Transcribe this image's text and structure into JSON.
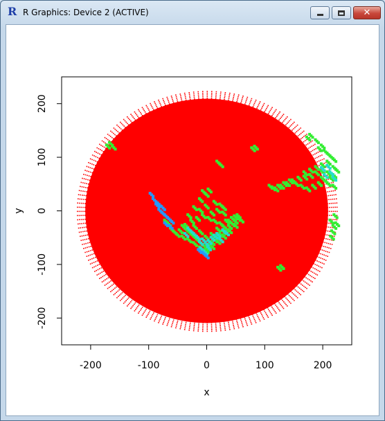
{
  "window": {
    "title": "R Graphics: Device 2 (ACTIVE)",
    "icon": "r-logo-icon",
    "controls": [
      "minimize-icon",
      "maximize-icon",
      "close-icon"
    ]
  },
  "colors": {
    "disc": "#ff0000",
    "green": "#33ee33",
    "cyan": "#22ddcc",
    "blue": "#2299ff"
  },
  "chart_data": {
    "type": "scatter",
    "title": "",
    "xlabel": "x",
    "ylabel": "y",
    "xlim": [
      -250,
      250
    ],
    "ylim": [
      -250,
      250
    ],
    "xticks": [
      -200,
      -100,
      0,
      100,
      200
    ],
    "yticks": [
      -200,
      -100,
      0,
      100,
      200
    ],
    "grid": false,
    "legend": "none",
    "disc_radius": 225,
    "series": [
      {
        "color": "#ff0000",
        "description_points": "radial polar grid of points filling disc radius 225"
      }
    ],
    "clusters": [
      {
        "color": "#33ee33",
        "points": [
          [
            110,
            45
          ],
          [
            120,
            40
          ],
          [
            130,
            45
          ],
          [
            140,
            50
          ],
          [
            150,
            55
          ],
          [
            160,
            60
          ],
          [
            170,
            62
          ],
          [
            180,
            65
          ],
          [
            190,
            70
          ],
          [
            200,
            72
          ],
          [
            210,
            70
          ],
          [
            220,
            65
          ],
          [
            215,
            60
          ],
          [
            205,
            55
          ],
          [
            195,
            50
          ],
          [
            185,
            45
          ],
          [
            175,
            40
          ],
          [
            165,
            45
          ],
          [
            155,
            50
          ],
          [
            145,
            55
          ],
          [
            135,
            50
          ],
          [
            125,
            45
          ],
          [
            115,
            42
          ],
          [
            170,
            70
          ],
          [
            180,
            75
          ],
          [
            190,
            80
          ],
          [
            200,
            85
          ],
          [
            210,
            90
          ],
          [
            220,
            80
          ],
          [
            215,
            100
          ],
          [
            205,
            110
          ],
          [
            200,
            120
          ],
          [
            190,
            130
          ],
          [
            180,
            140
          ],
          [
            175,
            135
          ],
          [
            195,
            115
          ],
          [
            210,
            105
          ],
          [
            220,
            95
          ],
          [
            225,
            75
          ],
          [
            200,
            60
          ],
          [
            210,
            50
          ],
          [
            220,
            45
          ]
        ]
      },
      {
        "color": "#22ddcc",
        "points": [
          [
            200,
            78
          ],
          [
            210,
            82
          ],
          [
            220,
            60
          ],
          [
            215,
            70
          ],
          [
            205,
            65
          ]
        ]
      },
      {
        "color": "#33ee33",
        "points": [
          [
            215,
            -20
          ],
          [
            220,
            -30
          ],
          [
            225,
            -25
          ],
          [
            218,
            -40
          ],
          [
            222,
            -10
          ],
          [
            216,
            -50
          ]
        ]
      },
      {
        "color": "#33ee33",
        "points": [
          [
            -170,
            120
          ],
          [
            -165,
            125
          ],
          [
            -160,
            118
          ],
          [
            80,
            115
          ],
          [
            85,
            118
          ],
          [
            130,
            -105
          ],
          [
            125,
            -108
          ],
          [
            20,
            90
          ],
          [
            25,
            85
          ],
          [
            -5,
            35
          ],
          [
            0,
            30
          ],
          [
            5,
            38
          ],
          [
            -10,
            20
          ],
          [
            15,
            15
          ],
          [
            25,
            10
          ],
          [
            30,
            5
          ]
        ]
      },
      {
        "color": "#33ee33",
        "points": [
          [
            -40,
            -30
          ],
          [
            -35,
            -35
          ],
          [
            -30,
            -40
          ],
          [
            -25,
            -45
          ],
          [
            -20,
            -50
          ],
          [
            -15,
            -55
          ],
          [
            -10,
            -60
          ],
          [
            -5,
            -65
          ],
          [
            0,
            -70
          ],
          [
            5,
            -65
          ],
          [
            10,
            -60
          ],
          [
            15,
            -55
          ],
          [
            20,
            -50
          ],
          [
            25,
            -45
          ],
          [
            30,
            -40
          ],
          [
            35,
            -35
          ],
          [
            40,
            -30
          ],
          [
            45,
            -25
          ],
          [
            50,
            -20
          ],
          [
            55,
            -15
          ],
          [
            60,
            -18
          ],
          [
            50,
            -28
          ],
          [
            40,
            -38
          ],
          [
            30,
            -48
          ],
          [
            20,
            -58
          ],
          [
            10,
            -68
          ],
          [
            0,
            -75
          ],
          [
            -10,
            -70
          ],
          [
            -20,
            -62
          ],
          [
            -30,
            -55
          ],
          [
            -40,
            -50
          ],
          [
            -50,
            -45
          ],
          [
            -45,
            -38
          ],
          [
            -35,
            -28
          ],
          [
            -25,
            -20
          ],
          [
            -15,
            -15
          ],
          [
            -5,
            -10
          ],
          [
            5,
            -15
          ],
          [
            15,
            -20
          ],
          [
            25,
            -25
          ],
          [
            35,
            -20
          ],
          [
            45,
            -15
          ],
          [
            55,
            -10
          ],
          [
            -55,
            -40
          ],
          [
            -60,
            -35
          ],
          [
            -20,
            -30
          ],
          [
            -10,
            -40
          ],
          [
            0,
            -50
          ],
          [
            10,
            -45
          ],
          [
            20,
            -35
          ],
          [
            30,
            -30
          ],
          [
            40,
            -20
          ],
          [
            50,
            -12
          ],
          [
            -65,
            -25
          ],
          [
            -70,
            -20
          ],
          [
            -30,
            -10
          ],
          [
            -20,
            5
          ],
          [
            -10,
            0
          ],
          [
            0,
            8
          ],
          [
            10,
            -5
          ],
          [
            20,
            0
          ],
          [
            30,
            -5
          ]
        ]
      },
      {
        "color": "#22ddcc",
        "points": [
          [
            -10,
            -60
          ],
          [
            -5,
            -55
          ],
          [
            0,
            -62
          ],
          [
            5,
            -58
          ],
          [
            10,
            -52
          ],
          [
            15,
            -48
          ],
          [
            20,
            -45
          ],
          [
            -15,
            -50
          ],
          [
            -20,
            -45
          ],
          [
            -25,
            -40
          ],
          [
            30,
            -38
          ],
          [
            35,
            -42
          ],
          [
            -8,
            -72
          ],
          [
            -2,
            -78
          ],
          [
            4,
            -70
          ],
          [
            -30,
            -35
          ],
          [
            -35,
            -45
          ],
          [
            25,
            -55
          ]
        ]
      },
      {
        "color": "#2299ff",
        "points": [
          [
            -90,
            20
          ],
          [
            -85,
            10
          ],
          [
            -80,
            0
          ],
          [
            -75,
            -5
          ],
          [
            -70,
            -10
          ],
          [
            -65,
            -15
          ],
          [
            -60,
            -20
          ],
          [
            -75,
            5
          ],
          [
            -82,
            12
          ],
          [
            -95,
            30
          ],
          [
            -70,
            -25
          ],
          [
            -62,
            -30
          ],
          [
            -5,
            -80
          ],
          [
            0,
            -85
          ],
          [
            -12,
            -75
          ]
        ]
      }
    ]
  }
}
